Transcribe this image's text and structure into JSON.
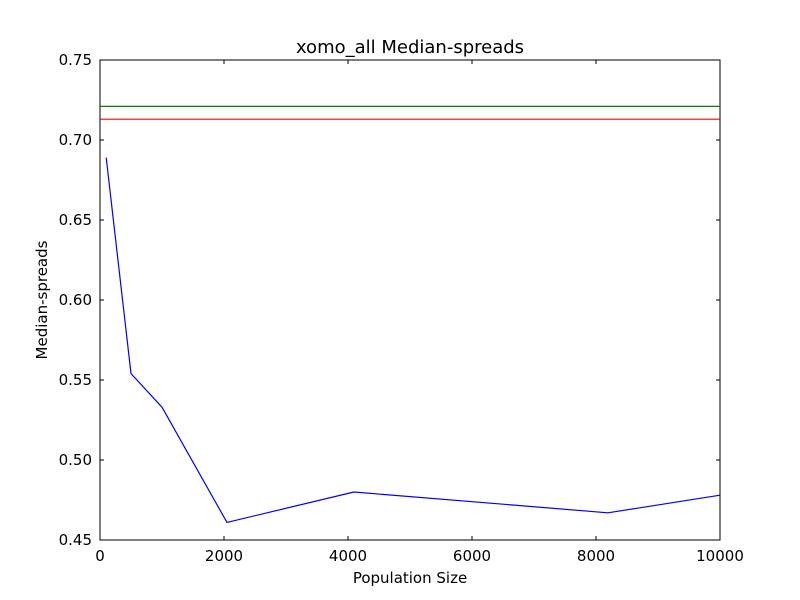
{
  "chart_data": {
    "type": "line",
    "title": "xomo_all Median-spreads",
    "xlabel": "Population Size",
    "ylabel": "Median-spreads",
    "xlim": [
      0,
      10000
    ],
    "ylim": [
      0.45,
      0.75
    ],
    "xticks": [
      0,
      2000,
      4000,
      6000,
      8000,
      10000
    ],
    "yticks": [
      0.45,
      0.5,
      0.55,
      0.6,
      0.65,
      0.7,
      0.75
    ],
    "xtick_labels": [
      "0",
      "2000",
      "4000",
      "6000",
      "8000",
      "10000"
    ],
    "ytick_labels": [
      "0.45",
      "0.50",
      "0.55",
      "0.60",
      "0.65",
      "0.70",
      "0.75"
    ],
    "grid": false,
    "series": [
      {
        "color": "#0000ff",
        "x": [
          100,
          500,
          1000,
          2048,
          4096,
          8192,
          10000
        ],
        "y": [
          0.689,
          0.554,
          0.533,
          0.461,
          0.48,
          0.467,
          0.478
        ]
      },
      {
        "color": "#008000",
        "x": [
          0,
          10000
        ],
        "y": [
          0.721,
          0.721
        ]
      },
      {
        "color": "#ff0000",
        "x": [
          0,
          10000
        ],
        "y": [
          0.713,
          0.713
        ]
      }
    ]
  }
}
